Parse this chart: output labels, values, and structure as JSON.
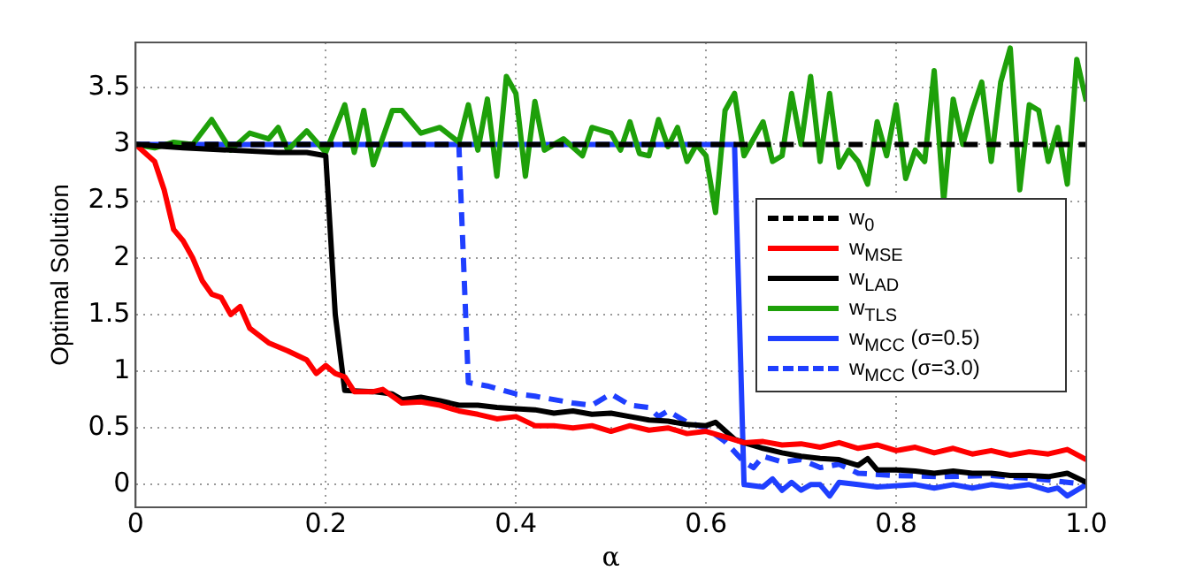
{
  "chart_data": {
    "type": "line",
    "xlabel": "α",
    "ylabel": "Optimal Solution",
    "xlim": [
      0,
      1
    ],
    "xticks": [
      0,
      0.2,
      0.4,
      0.6,
      0.8,
      {
        "value": 1,
        "label": "1.0"
      }
    ],
    "ylim": [
      -0.2,
      3.9
    ],
    "yticks": [
      0,
      0.5,
      1,
      1.5,
      2,
      2.5,
      3,
      3.5
    ],
    "grid": true,
    "legend": "right",
    "line_style": "solid",
    "series": [
      {
        "name": "w$_{0}$",
        "color": "#000000",
        "line_style": "dashed",
        "x": [
          0,
          1
        ],
        "values": [
          3,
          3
        ]
      },
      {
        "name": "w$_{MSE}$",
        "color": "#ff0000",
        "x": [
          0,
          0.02,
          0.03,
          0.04,
          0.05,
          0.06,
          0.07,
          0.08,
          0.09,
          0.1,
          0.11,
          0.12,
          0.14,
          0.16,
          0.18,
          0.19,
          0.2,
          0.21,
          0.22,
          0.23,
          0.25,
          0.26,
          0.28,
          0.3,
          0.32,
          0.34,
          0.36,
          0.38,
          0.4,
          0.42,
          0.44,
          0.46,
          0.48,
          0.5,
          0.52,
          0.54,
          0.56,
          0.58,
          0.6,
          0.62,
          0.64,
          0.66,
          0.68,
          0.7,
          0.72,
          0.74,
          0.76,
          0.78,
          0.8,
          0.82,
          0.84,
          0.86,
          0.88,
          0.9,
          0.92,
          0.94,
          0.96,
          0.98,
          1
        ],
        "values": [
          3,
          2.85,
          2.6,
          2.25,
          2.15,
          2,
          1.8,
          1.68,
          1.65,
          1.5,
          1.57,
          1.38,
          1.25,
          1.18,
          1.1,
          0.98,
          1.05,
          0.98,
          0.95,
          0.82,
          0.82,
          0.84,
          0.72,
          0.73,
          0.7,
          0.65,
          0.62,
          0.58,
          0.6,
          0.52,
          0.52,
          0.5,
          0.52,
          0.47,
          0.52,
          0.48,
          0.5,
          0.45,
          0.47,
          0.42,
          0.37,
          0.38,
          0.35,
          0.36,
          0.33,
          0.37,
          0.32,
          0.35,
          0.3,
          0.33,
          0.28,
          0.32,
          0.27,
          0.3,
          0.26,
          0.29,
          0.27,
          0.31,
          0.22
        ]
      },
      {
        "name": "w$_{LAD}$",
        "color": "#000000",
        "x": [
          0,
          0.05,
          0.1,
          0.15,
          0.18,
          0.2,
          0.21,
          0.22,
          0.25,
          0.27,
          0.28,
          0.3,
          0.32,
          0.34,
          0.36,
          0.38,
          0.4,
          0.42,
          0.44,
          0.46,
          0.48,
          0.5,
          0.52,
          0.54,
          0.56,
          0.58,
          0.6,
          0.61,
          0.63,
          0.64,
          0.66,
          0.68,
          0.7,
          0.72,
          0.74,
          0.76,
          0.77,
          0.78,
          0.8,
          0.82,
          0.84,
          0.86,
          0.88,
          0.9,
          0.92,
          0.94,
          0.96,
          0.98,
          1
        ],
        "values": [
          3,
          2.97,
          2.95,
          2.93,
          2.93,
          2.9,
          1.5,
          0.83,
          0.82,
          0.8,
          0.75,
          0.77,
          0.74,
          0.7,
          0.7,
          0.68,
          0.67,
          0.66,
          0.63,
          0.65,
          0.62,
          0.63,
          0.6,
          0.57,
          0.56,
          0.53,
          0.52,
          0.55,
          0.4,
          0.37,
          0.32,
          0.28,
          0.25,
          0.23,
          0.22,
          0.17,
          0.23,
          0.13,
          0.13,
          0.12,
          0.1,
          0.12,
          0.1,
          0.1,
          0.08,
          0.08,
          0.07,
          0.1,
          0.02
        ]
      },
      {
        "name": "w$_{TLS}$",
        "color": "#1ea00a",
        "x": [
          0,
          0.02,
          0.04,
          0.06,
          0.08,
          0.1,
          0.12,
          0.14,
          0.15,
          0.16,
          0.18,
          0.2,
          0.22,
          0.23,
          0.24,
          0.25,
          0.27,
          0.28,
          0.3,
          0.32,
          0.34,
          0.35,
          0.36,
          0.37,
          0.38,
          0.39,
          0.4,
          0.41,
          0.42,
          0.43,
          0.45,
          0.47,
          0.48,
          0.5,
          0.51,
          0.52,
          0.53,
          0.54,
          0.55,
          0.56,
          0.57,
          0.58,
          0.59,
          0.6,
          0.61,
          0.62,
          0.63,
          0.64,
          0.65,
          0.66,
          0.67,
          0.68,
          0.69,
          0.7,
          0.71,
          0.72,
          0.73,
          0.74,
          0.75,
          0.76,
          0.77,
          0.78,
          0.79,
          0.8,
          0.81,
          0.82,
          0.83,
          0.84,
          0.85,
          0.86,
          0.87,
          0.88,
          0.89,
          0.9,
          0.91,
          0.92,
          0.93,
          0.94,
          0.95,
          0.96,
          0.97,
          0.98,
          0.99,
          1
        ],
        "values": [
          3,
          2.97,
          3.02,
          3,
          3.22,
          2.95,
          3.1,
          3.05,
          3.15,
          2.95,
          3.12,
          2.93,
          3.35,
          2.93,
          3.3,
          2.82,
          3.3,
          3.3,
          3.1,
          3.15,
          3.02,
          3.35,
          2.95,
          3.4,
          2.72,
          3.6,
          3.45,
          2.72,
          3.38,
          2.95,
          3.05,
          2.9,
          3.15,
          3.1,
          2.95,
          3.2,
          2.92,
          2.9,
          3.22,
          2.98,
          3.15,
          2.85,
          3,
          2.9,
          2.4,
          3.3,
          3.45,
          2.9,
          3.05,
          3.2,
          2.85,
          2.9,
          3.45,
          3,
          3.6,
          2.85,
          3.45,
          2.8,
          2.95,
          2.85,
          2.65,
          3.2,
          2.9,
          3.35,
          2.7,
          2.95,
          2.85,
          3.65,
          2.5,
          3.4,
          3,
          3.3,
          3.55,
          2.85,
          3.55,
          3.85,
          2.6,
          3.35,
          3.3,
          2.85,
          3.15,
          2.65,
          3.75,
          3.38
        ]
      },
      {
        "name": "w$_{MCC}$ (σ=0.5)",
        "color": "#1f3fff",
        "x": [
          0,
          0.63,
          0.64,
          0.66,
          0.67,
          0.68,
          0.69,
          0.7,
          0.71,
          0.72,
          0.73,
          0.74,
          0.76,
          0.78,
          0.8,
          0.82,
          0.84,
          0.86,
          0.88,
          0.9,
          0.92,
          0.94,
          0.96,
          0.97,
          0.98,
          1
        ],
        "values": [
          3,
          3,
          0,
          -0.02,
          0.05,
          -0.05,
          0.02,
          -0.05,
          0,
          0,
          -0.1,
          0.02,
          0,
          -0.02,
          -0.01,
          0,
          -0.03,
          0,
          -0.03,
          0,
          -0.02,
          0,
          -0.05,
          -0.03,
          -0.1,
          0
        ]
      },
      {
        "name": "w$_{MCC}$ (σ=3.0)",
        "color": "#1f3fff",
        "line_style": "dashed",
        "x": [
          0,
          0.34,
          0.35,
          0.37,
          0.4,
          0.42,
          0.44,
          0.46,
          0.48,
          0.5,
          0.52,
          0.54,
          0.55,
          0.56,
          0.58,
          0.6,
          0.62,
          0.64,
          0.65,
          0.66,
          0.68,
          0.7,
          0.72,
          0.74,
          0.76,
          0.8,
          0.85,
          0.9,
          0.95,
          1
        ],
        "values": [
          3,
          3,
          0.9,
          0.87,
          0.8,
          0.78,
          0.75,
          0.72,
          0.7,
          0.8,
          0.7,
          0.68,
          0.6,
          0.65,
          0.55,
          0.5,
          0.38,
          0.2,
          0.15,
          0.25,
          0.2,
          0.22,
          0.15,
          0.18,
          0.1,
          0.08,
          0.07,
          0.08,
          0.05,
          0
        ]
      }
    ]
  }
}
